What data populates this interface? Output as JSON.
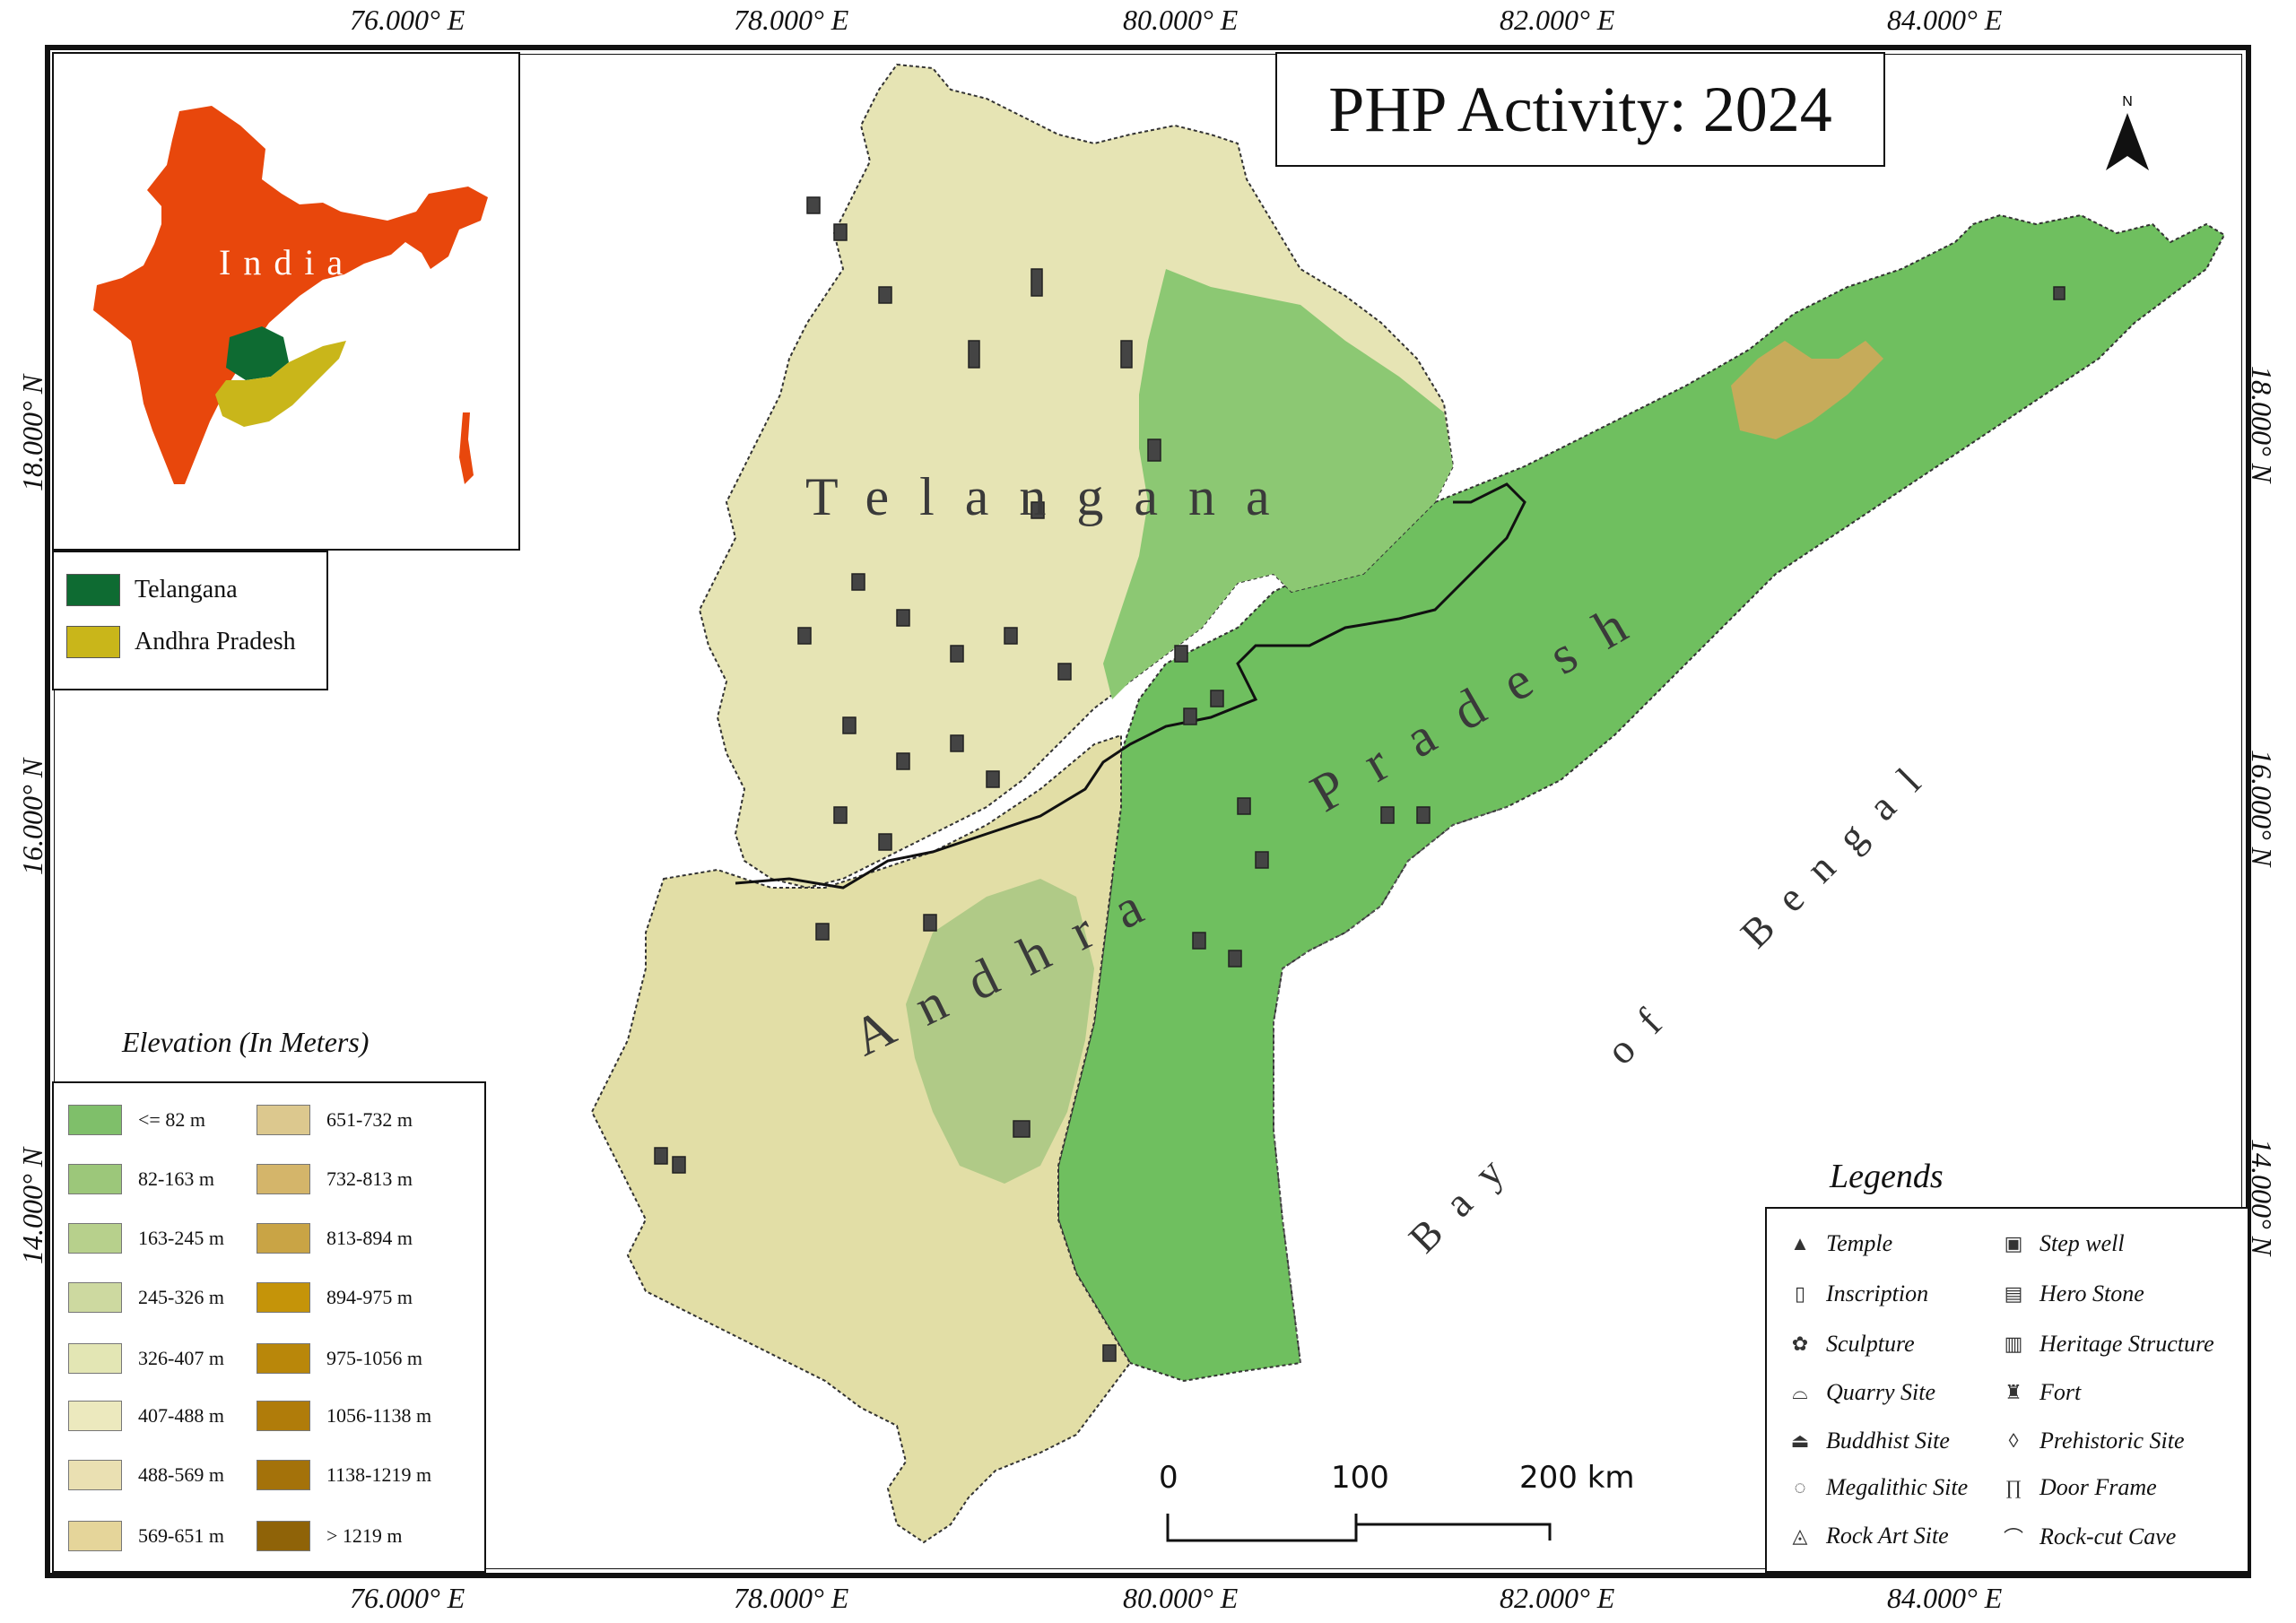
{
  "title": "PHP Activity: 2024",
  "coords": {
    "top": [
      "76.000° E",
      "78.000° E",
      "80.000° E",
      "82.000° E",
      "84.000° E"
    ],
    "bottom": [
      "76.000° E",
      "78.000° E",
      "80.000° E",
      "82.000° E",
      "84.000° E"
    ],
    "left": [
      "18.000° N",
      "16.000° N",
      "14.000° N"
    ],
    "right": [
      "18.000° N",
      "16.000° N",
      "14.000° N"
    ]
  },
  "inset": {
    "country_label": "India",
    "colors": {
      "india": "#e8470c",
      "telangana": "#0e6b32",
      "andhra_pradesh": "#c9b61a"
    },
    "legend": [
      {
        "label": "Telangana",
        "color": "#0e6b32"
      },
      {
        "label": "Andhra Pradesh",
        "color": "#c9b61a"
      }
    ]
  },
  "map_labels": {
    "telangana": "Telangana",
    "andhra": "Andhra",
    "pradesh": "Pradesh",
    "bay": "Bay",
    "of": "of",
    "bengal": "Bengal"
  },
  "north_arrow": "N",
  "elevation": {
    "title": "Elevation (In Meters)",
    "classes": [
      {
        "label": "<=  82 m",
        "color": "#7fbf6a"
      },
      {
        "label": "82-163 m",
        "color": "#9cc77a"
      },
      {
        "label": "163-245 m",
        "color": "#b7d08c"
      },
      {
        "label": "245-326 m",
        "color": "#cdd9a0"
      },
      {
        "label": "326-407 m",
        "color": "#e3e6b4"
      },
      {
        "label": "407-488 m",
        "color": "#ece9be"
      },
      {
        "label": "488-569 m",
        "color": "#eae0b2"
      },
      {
        "label": "569-651 m",
        "color": "#e5d59a"
      },
      {
        "label": "651-732 m",
        "color": "#dcc88e"
      },
      {
        "label": "732-813 m",
        "color": "#d4b56a"
      },
      {
        "label": "813-894 m",
        "color": "#c9a445"
      },
      {
        "label": "894-975 m",
        "color": "#c59409"
      },
      {
        "label": "975-1056 m",
        "color": "#b9870a"
      },
      {
        "label": "1056-1138 m",
        "color": "#b07c0a"
      },
      {
        "label": "1138-1219 m",
        "color": "#a4720a"
      },
      {
        "label": "> 1219 m",
        "color": "#8f6308"
      }
    ]
  },
  "legend": {
    "title": "Legends",
    "items": [
      {
        "label": "Temple",
        "icon": "temple-icon"
      },
      {
        "label": "Inscription",
        "icon": "inscription-icon"
      },
      {
        "label": "Sculpture",
        "icon": "sculpture-icon"
      },
      {
        "label": "Quarry Site",
        "icon": "quarry-icon"
      },
      {
        "label": "Buddhist Site",
        "icon": "buddhist-icon"
      },
      {
        "label": "Megalithic Site",
        "icon": "megalithic-icon"
      },
      {
        "label": "Rock Art Site",
        "icon": "rock-art-icon"
      },
      {
        "label": "Step well",
        "icon": "step-well-icon"
      },
      {
        "label": "Hero Stone",
        "icon": "hero-stone-icon"
      },
      {
        "label": "Heritage Structure",
        "icon": "heritage-icon"
      },
      {
        "label": "Fort",
        "icon": "fort-icon"
      },
      {
        "label": "Prehistoric Site",
        "icon": "prehistoric-icon"
      },
      {
        "label": "Door Frame",
        "icon": "door-frame-icon"
      },
      {
        "label": "Rock-cut Cave",
        "icon": "rock-cut-cave-icon"
      }
    ]
  },
  "scale_bar": {
    "labels": [
      "0",
      "100",
      "200 km"
    ]
  },
  "colors": {
    "lowland": "#6fbf5f",
    "plateau": "#e9e6bc",
    "midland": "#b9d28c",
    "highland": "#c8a24a",
    "border_line": "#111111"
  }
}
